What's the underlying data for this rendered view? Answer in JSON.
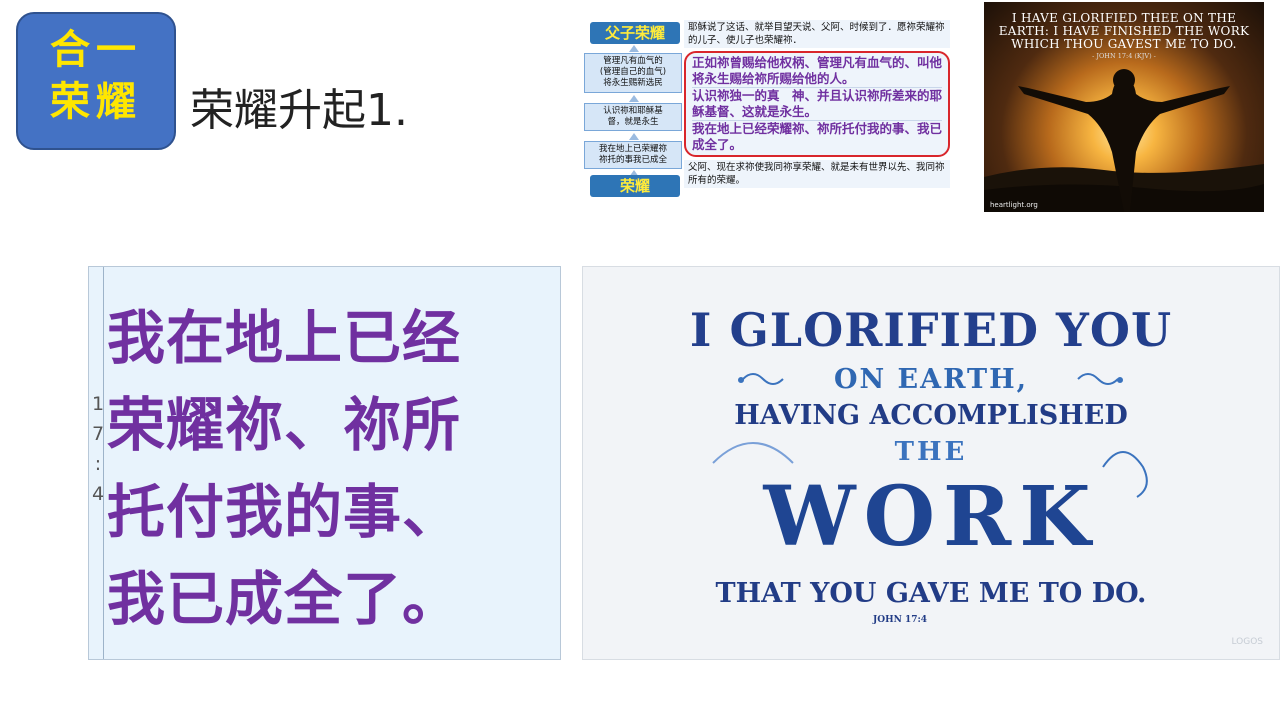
{
  "badge": {
    "line1": "合一",
    "line2": "荣耀"
  },
  "title": "荣耀升起1.",
  "diagram": {
    "top_label": "父子荣耀",
    "box1": "管理凡有血气的\n(管理自己的血气)\n将永生赐新选民",
    "box2": "认识祢和耶稣基\n督，就是永生",
    "box3": "我在地上已荣耀祢\n祢托的事我已成全",
    "bottom_label": "荣耀",
    "top_text": "耶稣说了这话、就举目望天说、父阿、时候到了．愿祢荣耀祢的儿子、使儿子也荣耀祢．",
    "red_1": "正如祢曾赐给他权柄、管理凡有血气的、叫他将永生赐给祢所赐给他的人。",
    "red_2": "认识祢独一的真　神、并且认识祢所差来的耶稣基督、这就是永生。",
    "red_3": "我在地上已经荣耀祢、祢所托付我的事、我已成全了。",
    "bottom_text": "父阿、现在求祢使我同祢享荣耀、就是未有世界以先、我同祢所有的荣耀。"
  },
  "photo": {
    "quote_1": "I HAVE GLORIFIED THEE ON THE",
    "quote_2": "EARTH: I HAVE FINISHED THE WORK",
    "quote_3": "WHICH THOU GAVEST ME TO DO.",
    "reference": "- JOHN 17:4 (KJV) -",
    "watermark": "heartlight.org"
  },
  "verse": {
    "reference_chars": [
      "1",
      "7",
      ":",
      "4"
    ],
    "line1": "我在地上已经",
    "line2": "荣耀祢、祢所",
    "line3": "托付我的事、",
    "line4": "我已成全了。"
  },
  "lettering": {
    "line1": "I GLORIFIED YOU",
    "line2": "ON EARTH,",
    "line3": "HAVING ACCOMPLISHED",
    "line4": "THE",
    "line5": "WORK",
    "line6": "THAT YOU GAVE ME TO DO.",
    "reference": "JOHN 17:4",
    "watermark": "LOGOS"
  },
  "colors": {
    "badge_bg": "#4472c4",
    "badge_text": "#ffe600",
    "verse_text": "#7030a0",
    "lettering_blue": "#233f8c",
    "red_outline": "#d9262b"
  }
}
